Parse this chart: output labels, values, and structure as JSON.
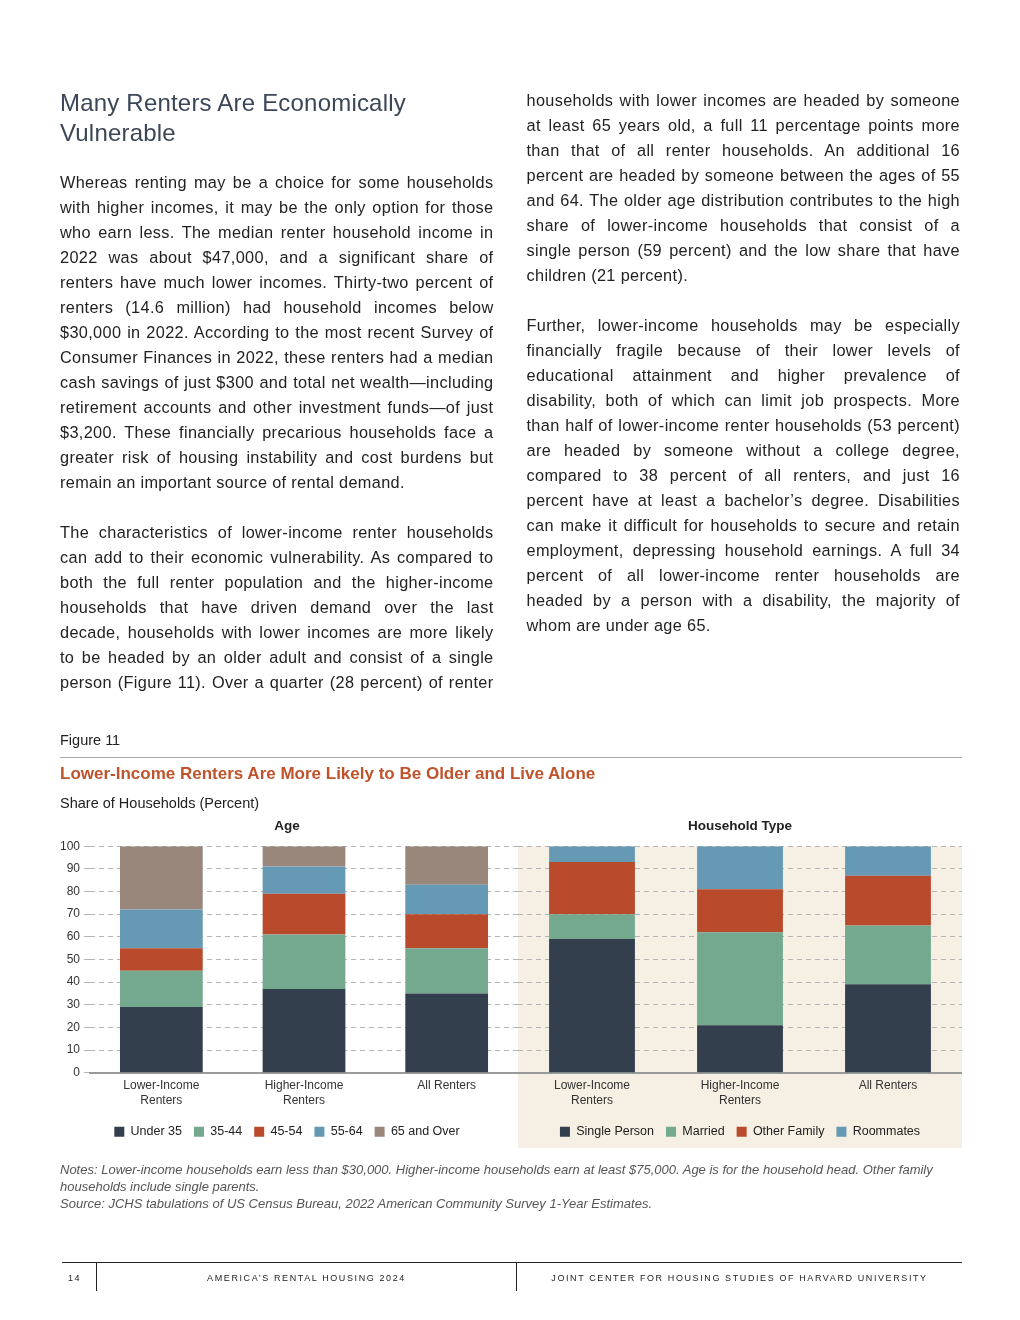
{
  "chart_data": [
    {
      "type": "bar",
      "title": "Lower-Income Renters Are More Likely to Be Older and Live Alone",
      "subtitle": "Age",
      "ylabel": "Share of Households (Percent)",
      "annotations": [
        "Many Renters Are Economically Vulnerable",
        "Whereas renting may be a choice for some households with higher incomes, it may be the only option for those who earn less. The median renter household income in 2022 was about $47,000, and a significant share of renters have much lower incomes. Thirty-two percent of renters (14.6 million) had household incomes below $30,000 in 2022. According to the most recent Survey of Consumer Finances in 2022, these renters had a median cash savings of just $300 and total net wealth—including retirement accounts and other investment funds—of just $3,200. These financially precarious households face a greater risk of housing instability and cost burdens but remain an important source of rental demand.",
        "The characteristics of lower-income renter households can add to their economic vulnerability. As compared to both the full renter population and the higher-income households that have driven demand over the last decade, households with lower incomes are more likely to be headed by an older adult and consist of a single person (Figure 11). Over a quarter (28 percent) of renter households with lower incomes are headed by someone at least 65 years old, a full 11 percentage points more than that of all renter households. An additional 16 percent are headed by someone between the ages of 55 and 64. The older age distribution contributes to the high share of lower-income households that consist of a single person (59 percent) and the low share that have children (21 percent).",
        "Further, lower-income households may be especially financially fragile because of their lower levels of educational attainment and higher prevalence of disability, both of which can limit job prospects. More than half of lower-income renter households (53 percent) are headed by someone without a college degree, compared to 38 percent of all renters, and just 16 percent have at least a bachelor’s degree. Disabilities can make it difficult for households to secure and retain employment, depressing household earnings. A full 34 percent of all lower-income renter households are headed by a person with a disability, the majority of whom are under age 65.",
        "Figure 11",
        "Notes: Lower-income households earn less than $30,000. Higher-income households earn at least $75,000. Age is for the household head. Other family households include single parents.",
        "Source: JCHS tabulations of US Census Bureau, 2022 American Community Survey 1-Year Estimates.",
        "14",
        "AMERICA’S RENTAL HOUSING 2024",
        "JOINT CENTER FOR HOUSING STUDIES OF HARVARD UNIVERSITY"
      ],
      "categories": [
        "Lower-Income Renters",
        "Higher-Income Renters",
        "All Renters"
      ],
      "stacked": true,
      "ylim": [
        0,
        100
      ],
      "yticks": [
        0,
        10,
        20,
        30,
        40,
        50,
        60,
        70,
        80,
        90,
        100
      ],
      "grid": "y",
      "legend": "bottom",
      "series": [
        {
          "name": "Under 35",
          "color": "#343f4e",
          "values": [
            29,
            37,
            35
          ]
        },
        {
          "name": "35-44",
          "color": "#74a98f",
          "values": [
            16,
            24,
            20
          ]
        },
        {
          "name": "45-54",
          "color": "#b94a2c",
          "values": [
            10,
            18,
            15
          ]
        },
        {
          "name": "55-64",
          "color": "#6699b3",
          "values": [
            17,
            12,
            13
          ]
        },
        {
          "name": "65 and Over",
          "color": "#9a877c",
          "values": [
            28,
            9,
            17
          ]
        }
      ]
    },
    {
      "type": "bar",
      "subtitle": "Household Type",
      "categories": [
        "Lower-Income Renters",
        "Higher-Income Renters",
        "All Renters"
      ],
      "stacked": true,
      "ylim": [
        0,
        100
      ],
      "yticks": [
        0,
        10,
        20,
        30,
        40,
        50,
        60,
        70,
        80,
        90,
        100
      ],
      "grid": "y",
      "legend": "bottom",
      "tick_labels": "x",
      "series": [
        {
          "name": "Single Person",
          "color": "#343f4e",
          "values": [
            59,
            21,
            39
          ]
        },
        {
          "name": "Married",
          "color": "#74a98f",
          "values": [
            11,
            41,
            26
          ]
        },
        {
          "name": "Other Family",
          "color": "#b94a2c",
          "values": [
            23,
            19,
            22
          ]
        },
        {
          "name": "Roommates",
          "color": "#6699b3",
          "values": [
            7,
            19,
            13
          ]
        }
      ]
    }
  ]
}
